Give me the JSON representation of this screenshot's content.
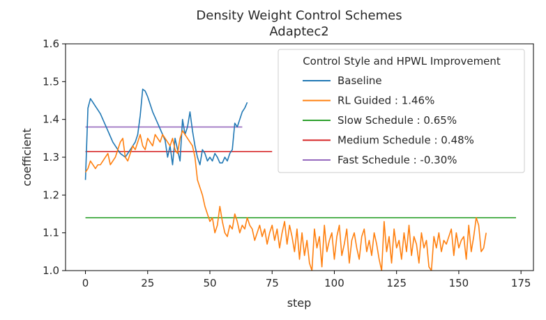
{
  "chart_data": {
    "type": "line",
    "title": "Density Weight Control Schemes",
    "subtitle": "Adaptec2",
    "xlabel": "step",
    "ylabel": "coefficient",
    "xlim": [
      -8,
      180
    ],
    "ylim": [
      1.0,
      1.6
    ],
    "xticks": [
      0,
      25,
      50,
      75,
      100,
      125,
      150,
      175
    ],
    "yticks": [
      1.0,
      1.1,
      1.2,
      1.3,
      1.4,
      1.5,
      1.6
    ],
    "grid": false,
    "legend": {
      "title": "Control Style and HPWL Improvement",
      "placement": "top-right",
      "entries": [
        {
          "label": "Baseline",
          "color": "#1f77b4"
        },
        {
          "label": "RL Guided : 1.46%",
          "color": "#ff7f0e"
        },
        {
          "label": "Slow Schedule : 0.65%",
          "color": "#2ca02c"
        },
        {
          "label": "Medium Schedule : 0.48%",
          "color": "#d62728"
        },
        {
          "label": "Fast Schedule : -0.30%",
          "color": "#9467bd"
        }
      ]
    },
    "series": [
      {
        "name": "Baseline",
        "color": "#1f77b4",
        "x": [
          0,
          1,
          2,
          3,
          4,
          5,
          6,
          7,
          8,
          9,
          10,
          11,
          12,
          13,
          14,
          15,
          16,
          17,
          18,
          19,
          20,
          21,
          22,
          23,
          24,
          25,
          26,
          27,
          28,
          29,
          30,
          31,
          32,
          33,
          34,
          35,
          36,
          37,
          38,
          39,
          40,
          41,
          42,
          43,
          44,
          45,
          46,
          47,
          48,
          49,
          50,
          51,
          52,
          53,
          54,
          55,
          56,
          57,
          58,
          59,
          60,
          61,
          62,
          63,
          64,
          65
        ],
        "y": [
          1.24,
          1.43,
          1.455,
          1.445,
          1.435,
          1.425,
          1.415,
          1.4,
          1.385,
          1.37,
          1.355,
          1.34,
          1.33,
          1.32,
          1.31,
          1.305,
          1.3,
          1.31,
          1.32,
          1.33,
          1.34,
          1.36,
          1.41,
          1.48,
          1.475,
          1.46,
          1.44,
          1.42,
          1.405,
          1.39,
          1.375,
          1.36,
          1.345,
          1.3,
          1.33,
          1.28,
          1.35,
          1.32,
          1.29,
          1.4,
          1.36,
          1.38,
          1.42,
          1.37,
          1.33,
          1.3,
          1.28,
          1.32,
          1.31,
          1.29,
          1.3,
          1.29,
          1.31,
          1.3,
          1.285,
          1.285,
          1.3,
          1.29,
          1.31,
          1.32,
          1.39,
          1.38,
          1.4,
          1.42,
          1.43,
          1.445
        ]
      },
      {
        "name": "RL Guided : 1.46%",
        "color": "#ff7f0e",
        "x": [
          0,
          1,
          2,
          3,
          4,
          5,
          6,
          7,
          8,
          9,
          10,
          11,
          12,
          13,
          14,
          15,
          16,
          17,
          18,
          19,
          20,
          21,
          22,
          23,
          24,
          25,
          26,
          27,
          28,
          29,
          30,
          31,
          32,
          33,
          34,
          35,
          36,
          37,
          38,
          39,
          40,
          41,
          42,
          43,
          44,
          45,
          46,
          47,
          48,
          49,
          50,
          51,
          52,
          53,
          54,
          55,
          56,
          57,
          58,
          59,
          60,
          61,
          62,
          63,
          64,
          65,
          66,
          67,
          68,
          69,
          70,
          71,
          72,
          73,
          74,
          75,
          76,
          77,
          78,
          79,
          80,
          81,
          82,
          83,
          84,
          85,
          86,
          87,
          88,
          89,
          90,
          91,
          92,
          93,
          94,
          95,
          96,
          97,
          98,
          99,
          100,
          101,
          102,
          103,
          104,
          105,
          106,
          107,
          108,
          109,
          110,
          111,
          112,
          113,
          114,
          115,
          116,
          117,
          118,
          119,
          120,
          121,
          122,
          123,
          124,
          125,
          126,
          127,
          128,
          129,
          130,
          131,
          132,
          133,
          134,
          135,
          136,
          137,
          138,
          139,
          140,
          141,
          142,
          143,
          144,
          145,
          146,
          147,
          148,
          149,
          150,
          151,
          152,
          153,
          154,
          155,
          156,
          157,
          158,
          159,
          160,
          161
        ],
        "y": [
          1.26,
          1.27,
          1.29,
          1.28,
          1.27,
          1.28,
          1.28,
          1.29,
          1.3,
          1.31,
          1.28,
          1.29,
          1.3,
          1.32,
          1.34,
          1.35,
          1.3,
          1.29,
          1.31,
          1.33,
          1.32,
          1.34,
          1.36,
          1.33,
          1.32,
          1.35,
          1.34,
          1.33,
          1.36,
          1.35,
          1.34,
          1.36,
          1.35,
          1.34,
          1.33,
          1.35,
          1.32,
          1.31,
          1.35,
          1.37,
          1.36,
          1.35,
          1.34,
          1.33,
          1.3,
          1.24,
          1.22,
          1.2,
          1.17,
          1.15,
          1.13,
          1.14,
          1.1,
          1.12,
          1.17,
          1.13,
          1.1,
          1.09,
          1.12,
          1.11,
          1.15,
          1.13,
          1.1,
          1.12,
          1.11,
          1.14,
          1.12,
          1.11,
          1.08,
          1.1,
          1.12,
          1.09,
          1.11,
          1.07,
          1.1,
          1.12,
          1.08,
          1.11,
          1.06,
          1.1,
          1.13,
          1.07,
          1.12,
          1.09,
          1.05,
          1.11,
          1.03,
          1.1,
          1.04,
          1.08,
          1.02,
          1.0,
          1.11,
          1.06,
          1.09,
          1.01,
          1.12,
          1.05,
          1.08,
          1.1,
          1.03,
          1.09,
          1.12,
          1.04,
          1.07,
          1.11,
          1.02,
          1.08,
          1.1,
          1.06,
          1.03,
          1.09,
          1.11,
          1.05,
          1.08,
          1.04,
          1.1,
          1.07,
          1.03,
          1.0,
          1.13,
          1.05,
          1.09,
          1.02,
          1.11,
          1.06,
          1.08,
          1.03,
          1.1,
          1.05,
          1.12,
          1.04,
          1.09,
          1.07,
          1.02,
          1.1,
          1.06,
          1.08,
          1.01,
          1.0,
          1.09,
          1.06,
          1.1,
          1.05,
          1.08,
          1.07,
          1.09,
          1.11,
          1.04,
          1.1,
          1.06,
          1.08,
          1.09,
          1.03,
          1.12,
          1.05,
          1.09,
          1.14,
          1.12,
          1.05,
          1.06,
          1.1
        ]
      },
      {
        "name": "Slow Schedule : 0.65%",
        "color": "#2ca02c",
        "x": [
          0,
          173
        ],
        "y": [
          1.14,
          1.14
        ]
      },
      {
        "name": "Medium Schedule : 0.48%",
        "color": "#d62728",
        "x": [
          0,
          75
        ],
        "y": [
          1.315,
          1.315
        ]
      },
      {
        "name": "Fast Schedule : -0.30%",
        "color": "#9467bd",
        "x": [
          0,
          63
        ],
        "y": [
          1.38,
          1.38
        ]
      }
    ]
  }
}
